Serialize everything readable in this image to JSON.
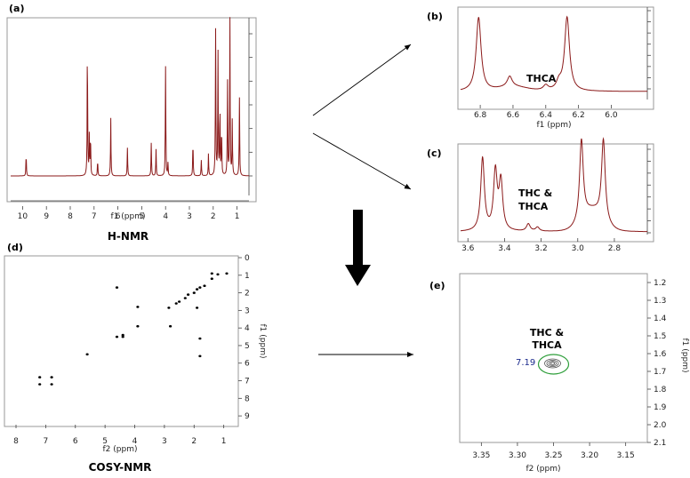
{
  "panels": {
    "a": {
      "label": "(a)",
      "xlabel": "f1 (ppm)",
      "caption": "H-NMR",
      "xticks": [
        "10",
        "9",
        "8",
        "7",
        "6",
        "5",
        "4",
        "3",
        "2",
        "1"
      ]
    },
    "b": {
      "label": "(b)",
      "xlabel": "f1 (ppm)",
      "annotation": "THCA",
      "xticks": [
        "6.8",
        "6.6",
        "6.4",
        "6.2",
        "6.0"
      ]
    },
    "c": {
      "label": "(c)",
      "xlabel": "f1 (ppm)",
      "annotation_line1": "THC &",
      "annotation_line2": "THCA",
      "xticks": [
        "3.6",
        "3.4",
        "3.2",
        "3.0",
        "2.8"
      ]
    },
    "d": {
      "label": "(d)",
      "xlabel": "f2 (ppm)",
      "ylabel": "f1 (ppm)",
      "caption": "COSY-NMR",
      "xticks": [
        "8",
        "7",
        "6",
        "5",
        "4",
        "3",
        "2",
        "1"
      ],
      "yticks": [
        "0",
        "1",
        "2",
        "3",
        "4",
        "5",
        "6",
        "7",
        "8",
        "9"
      ]
    },
    "e": {
      "label": "(e)",
      "xlabel": "f2 (ppm)",
      "ylabel": "f1 (ppm)",
      "annotation_line1": "THC &",
      "annotation_line2": "THCA",
      "peak_label": "7.19",
      "xticks": [
        "3.35",
        "3.30",
        "3.25",
        "3.20",
        "3.15"
      ],
      "yticks": [
        "1.2",
        "1.3",
        "1.4",
        "1.5",
        "1.6",
        "1.7",
        "1.8",
        "1.9",
        "2.0",
        "2.1"
      ]
    }
  },
  "colors": {
    "spectrum": "#8b1a1a",
    "circle": "#2e9e3a",
    "peak_label": "#1a2a8c",
    "arrow": "#000000"
  },
  "chart_data": [
    {
      "type": "line",
      "title": "(a)",
      "xlabel": "f1 (ppm)",
      "xlim": [
        10.5,
        0.5
      ],
      "peaks": [
        {
          "ppm": 9.85,
          "h": 0.14
        },
        {
          "ppm": 7.28,
          "h": 0.85
        },
        {
          "ppm": 7.2,
          "h": 0.25
        },
        {
          "ppm": 7.15,
          "h": 0.25
        },
        {
          "ppm": 6.85,
          "h": 0.1
        },
        {
          "ppm": 6.3,
          "h": 0.37
        },
        {
          "ppm": 5.6,
          "h": 0.18
        },
        {
          "ppm": 4.6,
          "h": 0.21
        },
        {
          "ppm": 4.4,
          "h": 0.17
        },
        {
          "ppm": 4.0,
          "h": 0.7
        },
        {
          "ppm": 3.9,
          "h": 0.08
        },
        {
          "ppm": 2.85,
          "h": 0.22
        },
        {
          "ppm": 2.5,
          "h": 0.1
        },
        {
          "ppm": 2.2,
          "h": 0.14
        },
        {
          "ppm": 1.9,
          "h": 0.93
        },
        {
          "ppm": 1.8,
          "h": 0.78
        },
        {
          "ppm": 1.72,
          "h": 0.45
        },
        {
          "ppm": 1.65,
          "h": 0.3
        },
        {
          "ppm": 1.4,
          "h": 0.6
        },
        {
          "ppm": 1.3,
          "h": 1.0
        },
        {
          "ppm": 1.2,
          "h": 0.35
        },
        {
          "ppm": 0.9,
          "h": 0.5
        }
      ]
    },
    {
      "type": "line",
      "title": "(b)",
      "xlabel": "f1 (ppm)",
      "xlim": [
        6.92,
        5.78
      ],
      "peaks": [
        {
          "ppm": 6.81,
          "h": 1.0
        },
        {
          "ppm": 6.62,
          "h": 0.14
        },
        {
          "ppm": 6.4,
          "h": 0.07
        },
        {
          "ppm": 6.32,
          "h": 0.1
        },
        {
          "ppm": 6.27,
          "h": 1.0
        }
      ]
    },
    {
      "type": "line",
      "title": "(c)",
      "xlabel": "f1 (ppm)",
      "xlim": [
        3.64,
        2.62
      ],
      "peaks": [
        {
          "ppm": 3.52,
          "h": 0.9
        },
        {
          "ppm": 3.45,
          "h": 0.72
        },
        {
          "ppm": 3.42,
          "h": 0.6
        },
        {
          "ppm": 3.27,
          "h": 0.09
        },
        {
          "ppm": 3.22,
          "h": 0.05
        },
        {
          "ppm": 2.98,
          "h": 1.0
        },
        {
          "ppm": 2.86,
          "h": 1.0
        }
      ]
    },
    {
      "type": "scatter",
      "title": "(d)",
      "xlabel": "f2 (ppm)",
      "ylabel": "f1 (ppm)",
      "xlim": [
        8.3,
        0.6
      ],
      "ylim": [
        0,
        9.5
      ],
      "points": [
        [
          0.9,
          0.9
        ],
        [
          1.2,
          0.95
        ],
        [
          1.4,
          0.9
        ],
        [
          1.4,
          1.2
        ],
        [
          1.65,
          1.6
        ],
        [
          1.8,
          1.7
        ],
        [
          1.9,
          1.8
        ],
        [
          2.0,
          2.0
        ],
        [
          2.2,
          2.1
        ],
        [
          2.3,
          2.3
        ],
        [
          2.5,
          2.5
        ],
        [
          2.6,
          2.6
        ],
        [
          2.85,
          2.85
        ],
        [
          1.9,
          2.85
        ],
        [
          4.6,
          1.7
        ],
        [
          3.9,
          2.8
        ],
        [
          3.9,
          3.9
        ],
        [
          2.8,
          3.9
        ],
        [
          4.6,
          4.5
        ],
        [
          4.4,
          4.4
        ],
        [
          4.4,
          4.5
        ],
        [
          1.8,
          4.6
        ],
        [
          5.6,
          5.5
        ],
        [
          1.8,
          5.6
        ],
        [
          7.2,
          6.8
        ],
        [
          7.2,
          7.2
        ],
        [
          6.8,
          6.8
        ],
        [
          6.8,
          7.2
        ]
      ]
    },
    {
      "type": "scatter",
      "title": "(e)",
      "xlabel": "f2 (ppm)",
      "ylabel": "f1 (ppm)",
      "xlim": [
        3.38,
        3.12
      ],
      "ylim": [
        1.15,
        2.1
      ],
      "points": [
        [
          3.25,
          1.66
        ]
      ]
    }
  ]
}
